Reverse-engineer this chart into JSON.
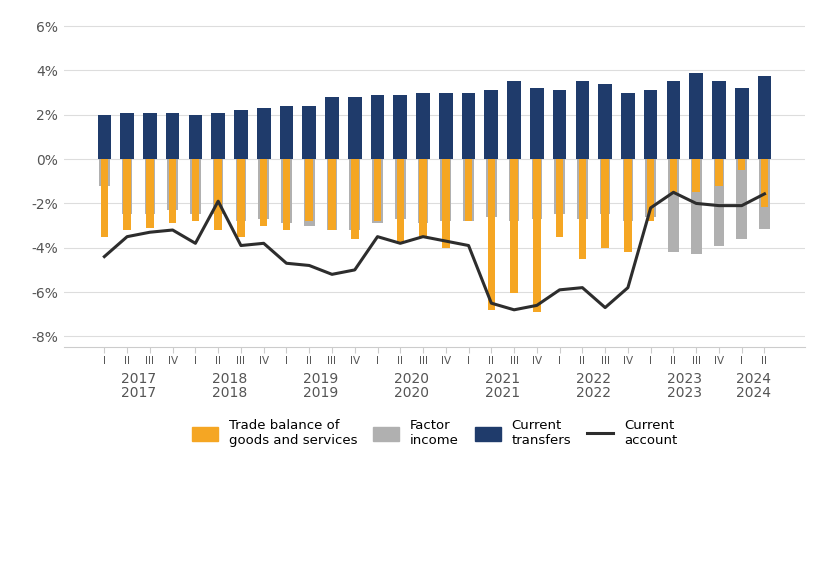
{
  "quarters": [
    "I",
    "II",
    "III",
    "IV",
    "I",
    "II",
    "III",
    "IV",
    "I",
    "II",
    "III",
    "IV",
    "I",
    "II",
    "III",
    "IV",
    "I",
    "II",
    "III",
    "IV",
    "I",
    "II",
    "III",
    "IV",
    "I",
    "II",
    "III",
    "IV",
    "I",
    "II"
  ],
  "years": [
    2017,
    2017,
    2017,
    2017,
    2018,
    2018,
    2018,
    2018,
    2019,
    2019,
    2019,
    2019,
    2020,
    2020,
    2020,
    2020,
    2021,
    2021,
    2021,
    2021,
    2022,
    2022,
    2022,
    2022,
    2023,
    2023,
    2023,
    2023,
    2024,
    2024
  ],
  "year_labels": [
    2017,
    2018,
    2019,
    2020,
    2021,
    2022,
    2023,
    2024
  ],
  "trade_balance": [
    -3.5,
    -3.2,
    -3.1,
    -2.9,
    -2.8,
    -3.2,
    -3.5,
    -3.0,
    -3.2,
    -2.8,
    -3.2,
    -3.6,
    -2.8,
    -3.8,
    -3.5,
    -4.0,
    -2.8,
    -6.8,
    -6.03,
    -6.88,
    -3.5,
    -4.5,
    -4.0,
    -4.2,
    -2.8,
    -1.5,
    -1.5,
    -1.2,
    -0.5,
    -2.17
  ],
  "factor_income": [
    -1.2,
    -2.5,
    -2.5,
    -2.3,
    -2.5,
    -2.5,
    -2.8,
    -2.7,
    -2.9,
    -3.0,
    -3.2,
    -3.2,
    -2.9,
    -2.7,
    -2.9,
    -2.8,
    -2.8,
    -2.6,
    -2.8,
    -2.7,
    -2.5,
    -2.7,
    -2.5,
    -2.8,
    -2.6,
    -4.2,
    -4.3,
    -3.9,
    -3.6,
    -3.14
  ],
  "current_transfers": [
    2.0,
    2.1,
    2.1,
    2.1,
    2.0,
    2.1,
    2.2,
    2.3,
    2.4,
    2.4,
    2.8,
    2.8,
    2.9,
    2.9,
    3.0,
    3.0,
    3.0,
    3.1,
    3.5,
    3.2,
    3.1,
    3.5,
    3.4,
    3.0,
    3.1,
    3.5,
    3.9,
    3.5,
    3.2,
    3.73
  ],
  "current_account": [
    -4.4,
    -3.5,
    -3.3,
    -3.2,
    -3.8,
    -1.9,
    -3.9,
    -3.8,
    -4.7,
    -4.8,
    -5.2,
    -5.0,
    -3.5,
    -3.8,
    -3.5,
    -3.7,
    -3.9,
    -6.5,
    -6.8,
    -6.6,
    -5.9,
    -5.8,
    -6.7,
    -5.8,
    -2.2,
    -1.5,
    -2.0,
    -2.1,
    -2.1,
    -1.57
  ],
  "color_trade": "#F5A623",
  "color_factor": "#B0B0B0",
  "color_transfers": "#1F3B6B",
  "color_account": "#2D2D2D",
  "bg_color": "#FFFFFF",
  "ylim": [
    -8.5,
    6.5
  ],
  "yticks": [
    -8,
    -6,
    -4,
    -2,
    0,
    2,
    4,
    6
  ],
  "ytick_labels": [
    "-8%",
    "-6%",
    "-4%",
    "-2%",
    "0%",
    "2%",
    "4%",
    "6%"
  ]
}
